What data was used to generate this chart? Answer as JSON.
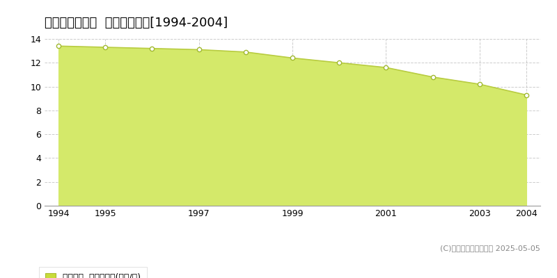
{
  "title": "比企郡川島町表  公示地価推移[1994-2004]",
  "years": [
    1994,
    1995,
    1996,
    1997,
    1998,
    1999,
    2000,
    2001,
    2002,
    2003,
    2004
  ],
  "values": [
    13.4,
    13.3,
    13.2,
    13.1,
    12.9,
    12.4,
    12.0,
    11.6,
    10.8,
    10.2,
    9.3
  ],
  "ylim": [
    0,
    14
  ],
  "yticks": [
    0,
    2,
    4,
    6,
    8,
    10,
    12,
    14
  ],
  "xticks": [
    1994,
    1995,
    1997,
    1999,
    2001,
    2003,
    2004
  ],
  "fill_color": "#d4e96a",
  "line_color": "#b8cc40",
  "marker_facecolor": "#ffffff",
  "marker_edgecolor": "#a0b830",
  "grid_color": "#cccccc",
  "bg_color": "#ffffff",
  "plot_bg_color": "#ffffff",
  "legend_label": "公示地価  平均坪単価(万円/坪)",
  "legend_square_color": "#c8dc3a",
  "legend_square_edge": "#aabb30",
  "copyright_text": "(C)土地価格ドットコム 2025-05-05",
  "title_fontsize": 13,
  "tick_fontsize": 9,
  "legend_fontsize": 9,
  "copyright_fontsize": 8
}
